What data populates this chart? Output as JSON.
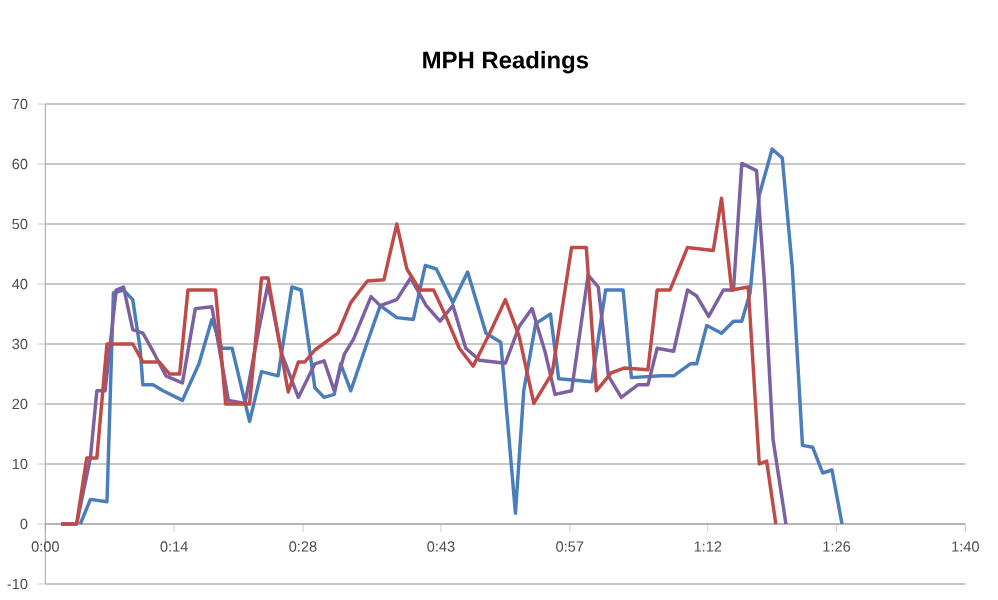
{
  "chart_data": {
    "type": "line",
    "title": "MPH Readings",
    "xlim": [
      0,
      100
    ],
    "ylim": [
      -10,
      70
    ],
    "xticks": [
      {
        "value": 0,
        "label": "0:00"
      },
      {
        "value": 14,
        "label": "0:14"
      },
      {
        "value": 28,
        "label": "0:28"
      },
      {
        "value": 43,
        "label": "0:43"
      },
      {
        "value": 57,
        "label": "0:57"
      },
      {
        "value": 72,
        "label": "1:12"
      },
      {
        "value": 86,
        "label": "1:26"
      },
      {
        "value": 100,
        "label": "1:40"
      }
    ],
    "yticks": [
      -10,
      0,
      10,
      20,
      30,
      40,
      50,
      60,
      70
    ],
    "grid": "y",
    "marker": "none",
    "line_style": "solid",
    "series": [
      {
        "color": "#4a7ebb",
        "x": [
          3.8,
          4.9,
          6.7,
          7.4,
          8.5,
          9.5,
          10.3,
          10.6,
          11.7,
          12.8,
          14.9,
          16.7,
          18.1,
          19.2,
          20.3,
          22.2,
          23.5,
          25.3,
          26.8,
          27.8,
          29.3,
          30.3,
          31.4,
          32.1,
          33.2,
          35.0,
          36.4,
          38.2,
          40.0,
          41.3,
          42.5,
          44.3,
          45.9,
          47.9,
          49.5,
          51.1,
          52.0,
          53.3,
          54.9,
          55.8,
          59.4,
          60.9,
          62.8,
          63.7,
          66.9,
          68.3,
          70.1,
          70.8,
          71.9,
          73.5,
          74.8,
          75.7,
          76.6,
          77.6,
          79.0,
          80.1,
          81.2,
          82.3,
          83.4,
          84.5,
          85.5,
          86.6
        ],
        "values": [
          0,
          4.1,
          3.7,
          38.5,
          39,
          37.4,
          29.3,
          23.2,
          23.2,
          22.2,
          20.6,
          26.7,
          34.1,
          29.3,
          29.3,
          17.1,
          25.4,
          24.7,
          39.5,
          39,
          22.7,
          21.1,
          21.6,
          26.7,
          22.2,
          30.3,
          36.4,
          34.4,
          34.1,
          43.1,
          42.5,
          36.9,
          42.0,
          31.8,
          30.3,
          1.8,
          22.2,
          33.4,
          35.0,
          24.2,
          23.7,
          39,
          39,
          24.4,
          24.7,
          24.7,
          26.7,
          26.7,
          33.1,
          31.8,
          33.8,
          33.8,
          38.5,
          54.8,
          62.5,
          61.0,
          42.5,
          13.1,
          12.8,
          8.5,
          9.0,
          0
        ]
      },
      {
        "color": "#7d60a0",
        "x": [
          1.7,
          3.4,
          4.9,
          5.6,
          6.5,
          7.7,
          8.5,
          9.5,
          10.6,
          11.7,
          13.1,
          14.9,
          16.3,
          18.1,
          19.9,
          21.7,
          23.2,
          24.2,
          25.7,
          27.5,
          29.3,
          30.3,
          31.4,
          32.5,
          33.5,
          35.4,
          36.4,
          38.2,
          39.7,
          41.4,
          42.9,
          44.3,
          45.7,
          47.2,
          50.0,
          51.5,
          52.9,
          54.3,
          55.4,
          57.2,
          59.0,
          60.1,
          61.2,
          62.6,
          64.4,
          65.5,
          66.5,
          68.3,
          69.8,
          70.8,
          72.1,
          73.7,
          74.8,
          75.7,
          77.3,
          78.2,
          79.1,
          80.5
        ],
        "values": [
          0,
          0,
          11,
          22.2,
          22.2,
          39,
          39.5,
          32.4,
          31.8,
          28.8,
          24.7,
          23.5,
          35.9,
          36.2,
          20.6,
          20.1,
          32.4,
          40,
          28.3,
          21.1,
          26.7,
          27.2,
          22.2,
          28.3,
          30.8,
          37.9,
          36.4,
          37.4,
          41.0,
          36.4,
          33.8,
          36.4,
          29.3,
          27.3,
          26.8,
          32.9,
          35.9,
          28.8,
          21.6,
          22.2,
          41.5,
          39.5,
          24.7,
          21.1,
          23.2,
          23.2,
          29.3,
          28.8,
          39,
          38.0,
          34.6,
          39,
          39,
          60.1,
          58.9,
          39.5,
          14.1,
          0
        ]
      },
      {
        "color": "#be4b48",
        "x": [
          1.7,
          3.4,
          4.5,
          5.6,
          6.7,
          9.5,
          10.6,
          12.4,
          13.5,
          14.6,
          15.5,
          18.5,
          19.6,
          22.2,
          23.5,
          24.2,
          26.4,
          27.5,
          28.2,
          29.3,
          31.8,
          33.2,
          35.0,
          36.8,
          38.2,
          39.3,
          40.7,
          42.2,
          43.6,
          45.0,
          46.5,
          48.3,
          50.0,
          51.5,
          53.1,
          55.1,
          57.2,
          58.8,
          59.9,
          61.5,
          62.9,
          65.5,
          66.5,
          67.9,
          69.8,
          72.6,
          73.5,
          74.6,
          76.4,
          77.6,
          78.4,
          79.4
        ],
        "values": [
          0,
          0,
          11,
          11,
          30,
          30,
          27,
          27,
          25,
          25,
          39,
          39,
          20,
          20,
          41,
          41,
          22,
          27,
          27,
          29,
          31.8,
          36.9,
          40.5,
          40.7,
          50.0,
          42.5,
          39,
          39,
          34.4,
          29.3,
          26.3,
          31.8,
          37.4,
          31.3,
          20.1,
          25.2,
          46.1,
          46.1,
          22.2,
          25.2,
          26.0,
          25.7,
          39,
          39,
          46.1,
          45.6,
          54.3,
          39,
          39.5,
          10.0,
          10.5,
          0
        ]
      }
    ]
  }
}
